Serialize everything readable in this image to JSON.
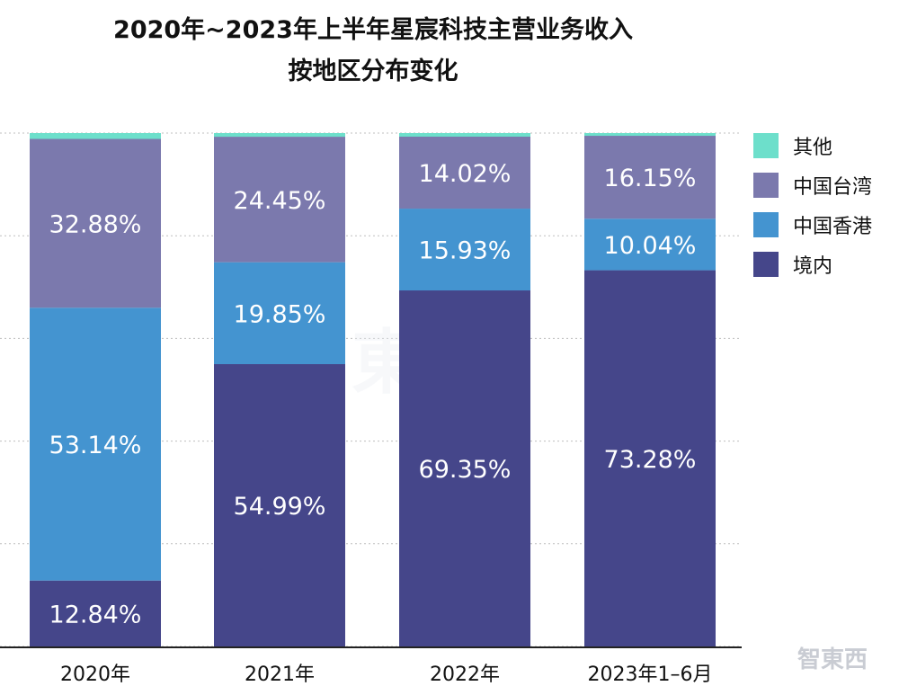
{
  "chart_data": {
    "type": "bar",
    "stacked": true,
    "title_lines": [
      "2020年~2023年上半年星宸科技主营业务收入",
      "按地区分布变化"
    ],
    "categories": [
      "2020年",
      "2021年",
      "2022年",
      "2023年1–6月"
    ],
    "series": [
      {
        "name": "境内",
        "color": "#45468a",
        "values": [
          12.84,
          54.99,
          69.35,
          73.28
        ],
        "labels": [
          "12.84%",
          "54.99%",
          "69.35%",
          "73.28%"
        ]
      },
      {
        "name": "中国香港",
        "color": "#4494d0",
        "values": [
          53.14,
          19.85,
          15.93,
          10.04
        ],
        "labels": [
          "53.14%",
          "19.85%",
          "15.93%",
          "10.04%"
        ]
      },
      {
        "name": "中国台湾",
        "color": "#7b79ad",
        "values": [
          32.88,
          24.45,
          14.02,
          16.15
        ],
        "labels": [
          "32.88%",
          "24.45%",
          "14.02%",
          "16.15%"
        ]
      },
      {
        "name": "其他",
        "color": "#6ddfcb",
        "values": [
          1.14,
          0.71,
          0.7,
          0.53
        ],
        "labels": [
          "",
          "",
          "",
          ""
        ]
      }
    ],
    "legend_order": [
      "其他",
      "中国台湾",
      "中国香港",
      "境内"
    ],
    "legend_position": "top-right",
    "ylim": [
      0,
      100
    ],
    "grid": true,
    "xlabel": "",
    "ylabel": ""
  },
  "watermark": {
    "text": "智東西"
  }
}
